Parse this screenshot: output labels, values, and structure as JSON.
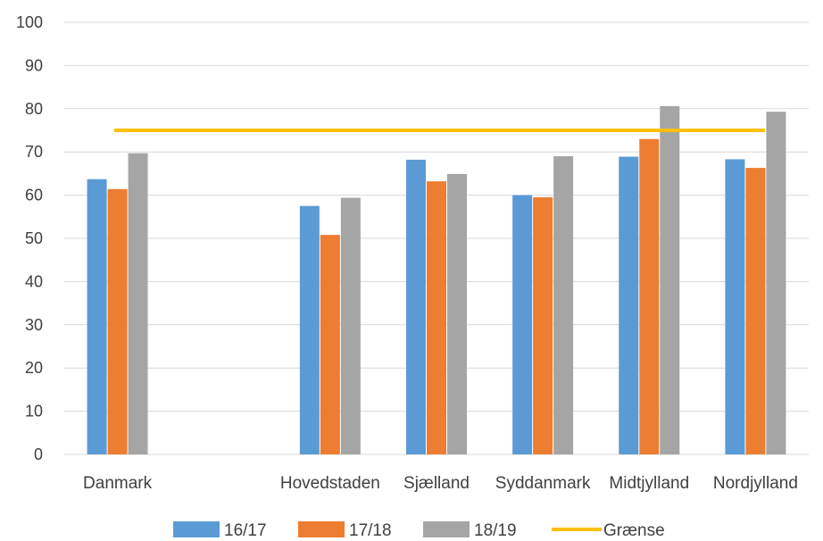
{
  "chart_data": {
    "type": "bar",
    "categories": [
      "Danmark",
      "",
      "Hovedstaden",
      "Sjælland",
      "Syddanmark",
      "Midtjylland",
      "Nordjylland"
    ],
    "series": [
      {
        "name": "16/17",
        "color": "#5B9BD5",
        "values": [
          63.7,
          null,
          57.5,
          68.2,
          60.0,
          68.9,
          68.3
        ]
      },
      {
        "name": "17/18",
        "color": "#ED7D31",
        "values": [
          61.4,
          null,
          50.8,
          63.2,
          59.5,
          73.0,
          66.3
        ]
      },
      {
        "name": "18/19",
        "color": "#A5A5A5",
        "values": [
          69.7,
          null,
          59.4,
          64.9,
          69.0,
          80.6,
          79.3
        ]
      }
    ],
    "threshold": {
      "name": "Grænse",
      "value": 75,
      "color": "#FFC000"
    },
    "ylim": [
      0,
      100
    ],
    "yticks": [
      0,
      10,
      20,
      30,
      40,
      50,
      60,
      70,
      80,
      90,
      100
    ],
    "grid": true,
    "legend_position": "bottom",
    "title": "",
    "xlabel": "",
    "ylabel": ""
  }
}
